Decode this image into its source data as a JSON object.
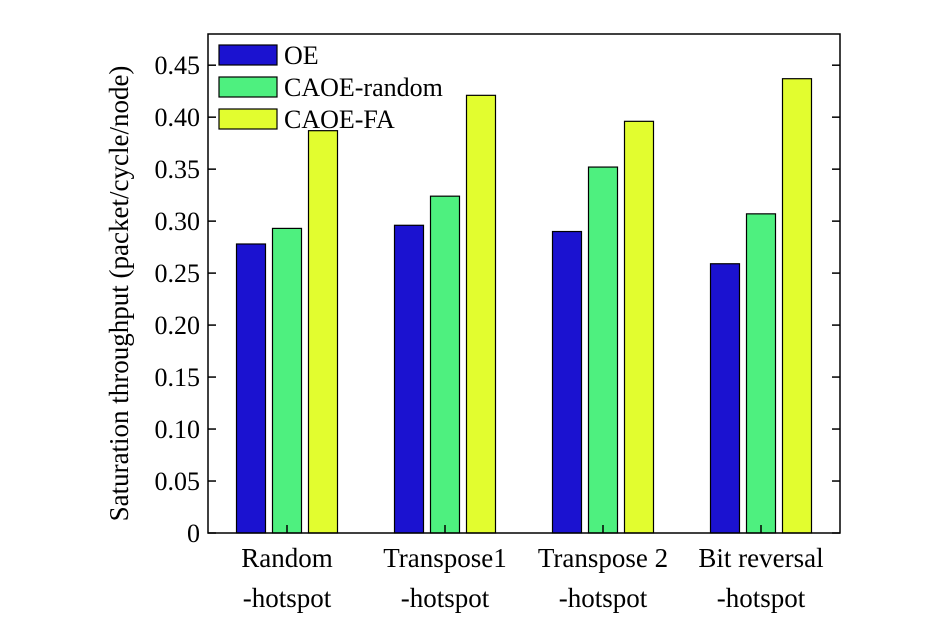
{
  "chart_data": {
    "type": "bar",
    "categories": [
      [
        "Random",
        "-hotspot"
      ],
      [
        "Transpose1",
        "-hotspot"
      ],
      [
        "Transpose 2",
        "-hotspot"
      ],
      [
        "Bit reversal",
        "-hotspot"
      ]
    ],
    "series": [
      {
        "name": "OE",
        "color": "#1b12d0",
        "values": [
          0.278,
          0.296,
          0.29,
          0.259
        ]
      },
      {
        "name": "CAOE-random",
        "color": "#4ef07f",
        "values": [
          0.293,
          0.324,
          0.352,
          0.307
        ]
      },
      {
        "name": "CAOE-FA",
        "color": "#e2fd2f",
        "values": [
          0.387,
          0.421,
          0.396,
          0.437
        ]
      }
    ],
    "ylabel": "Saturation throughput (packet/cycle/node)",
    "xlabel": "",
    "title": "",
    "ylim": [
      0,
      0.48
    ],
    "yticks": [
      {
        "value": 0,
        "label": "0"
      },
      {
        "value": 0.05,
        "label": "0.05"
      },
      {
        "value": 0.1,
        "label": "0.10"
      },
      {
        "value": 0.15,
        "label": "0.15"
      },
      {
        "value": 0.2,
        "label": "0.20"
      },
      {
        "value": 0.25,
        "label": "0.25"
      },
      {
        "value": 0.3,
        "label": "0.30"
      },
      {
        "value": 0.35,
        "label": "0.35"
      },
      {
        "value": 0.4,
        "label": "0.40"
      },
      {
        "value": 0.45,
        "label": "0.45"
      }
    ],
    "grid": false,
    "legend_position": "top-left"
  }
}
